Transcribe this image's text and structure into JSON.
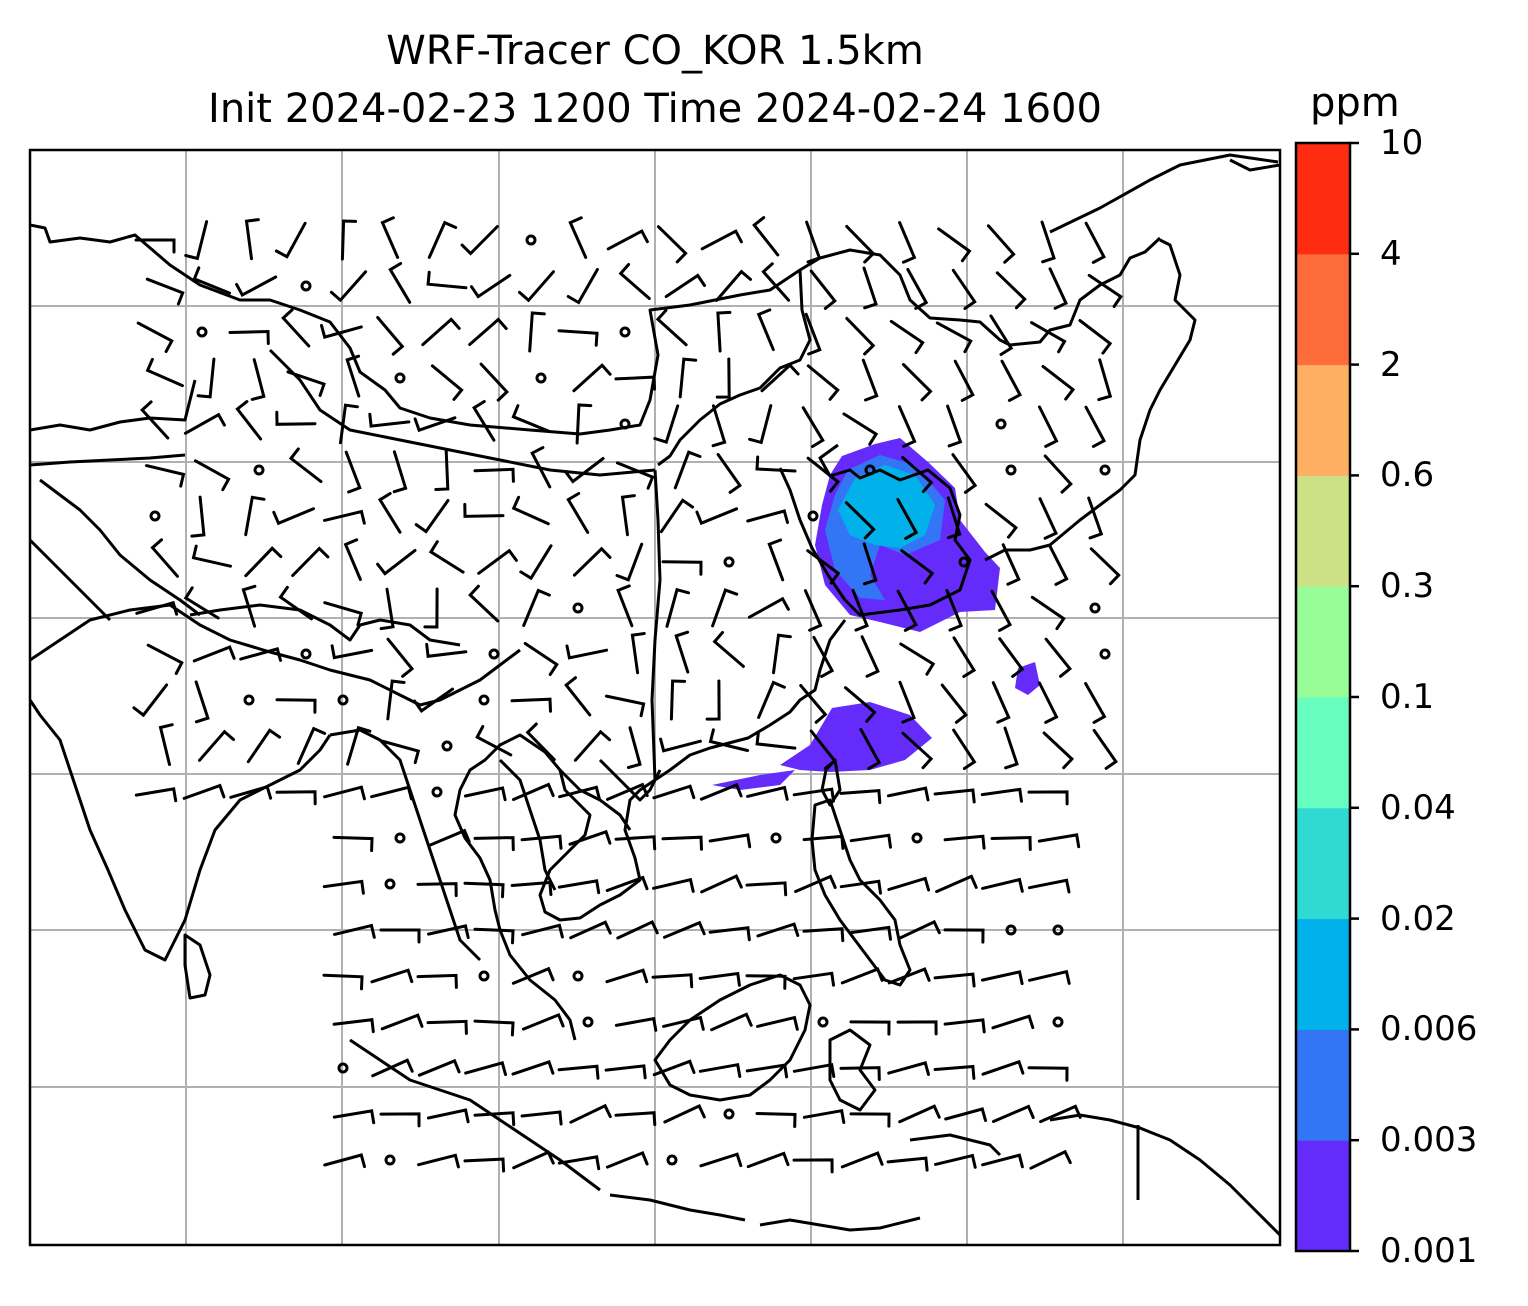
{
  "title": {
    "line1": "WRF-Tracer CO_KOR 1.5km",
    "line2": "Init 2024-02-23 1200 Time 2024-02-24 1600"
  },
  "colorbar": {
    "unit": "ppm",
    "levels": [
      "0.001",
      "0.003",
      "0.006",
      "0.02",
      "0.04",
      "0.1",
      "0.3",
      "0.6",
      "2",
      "4",
      "10"
    ],
    "colors": [
      "#652bfb",
      "#3376f5",
      "#00b1ea",
      "#30dad2",
      "#66fdbf",
      "#99fd97",
      "#cce185",
      "#feaf62",
      "#ff6c3b",
      "#ff2c12"
    ]
  },
  "map": {
    "gridlines": true,
    "coastline_color": "#000000",
    "grid_color": "#b0b0b0"
  }
}
